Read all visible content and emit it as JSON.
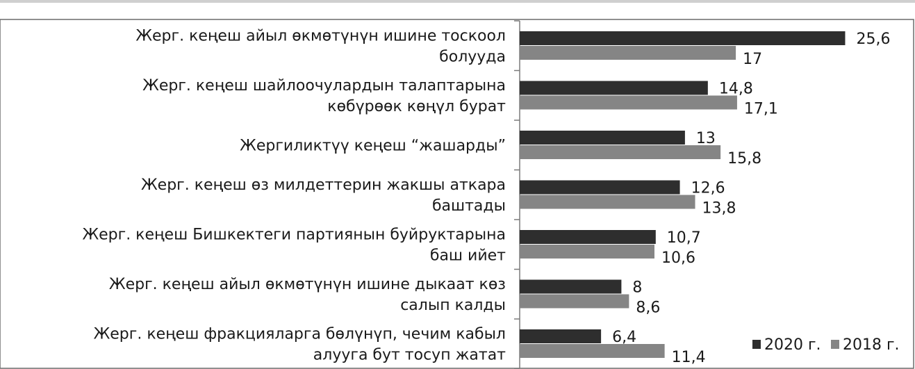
{
  "chart_data": {
    "type": "bar",
    "orientation": "horizontal",
    "title": "",
    "xlabel": "",
    "ylabel": "",
    "xlim": [
      0,
      30
    ],
    "grid": false,
    "legend_position": "bottom-right",
    "categories": [
      [
        "Жерг. кеңеш айыл өкмөтүнүн ишине тоскоол",
        "болууда"
      ],
      [
        "Жерг. кеңеш шайлоочулардын талаптарына",
        "көбүрөөк көңүл бурат"
      ],
      [
        "Жергиликтүү кеңеш “жашарды”"
      ],
      [
        "Жерг. кеңеш өз милдеттерин жакшы аткара",
        "баштады"
      ],
      [
        "Жерг. кеңеш Бишкектеги партиянын буйруктарына",
        "баш ийет"
      ],
      [
        "Жерг. кеңеш айыл өкмөтүнүн ишине дыкаат көз",
        "салып калды"
      ],
      [
        "Жерг. кеңеш фракцияларга бөлүнүп, чечим кабыл",
        "алууга бут тосуп жатат"
      ]
    ],
    "series": [
      {
        "name": "2020 г.",
        "color": "#2e2e2e",
        "values": [
          25.6,
          14.8,
          13,
          12.6,
          10.7,
          8,
          6.4
        ],
        "labels": [
          "25,6",
          "14,8",
          "13",
          "12,6",
          "10,7",
          "8",
          "6,4"
        ]
      },
      {
        "name": "2018 г.",
        "color": "#858585",
        "values": [
          17,
          17.1,
          15.8,
          13.8,
          10.6,
          8.6,
          11.4
        ],
        "labels": [
          "17",
          "17,1",
          "15,8",
          "13,8",
          "10,6",
          "8,6",
          "11,4"
        ]
      }
    ]
  }
}
